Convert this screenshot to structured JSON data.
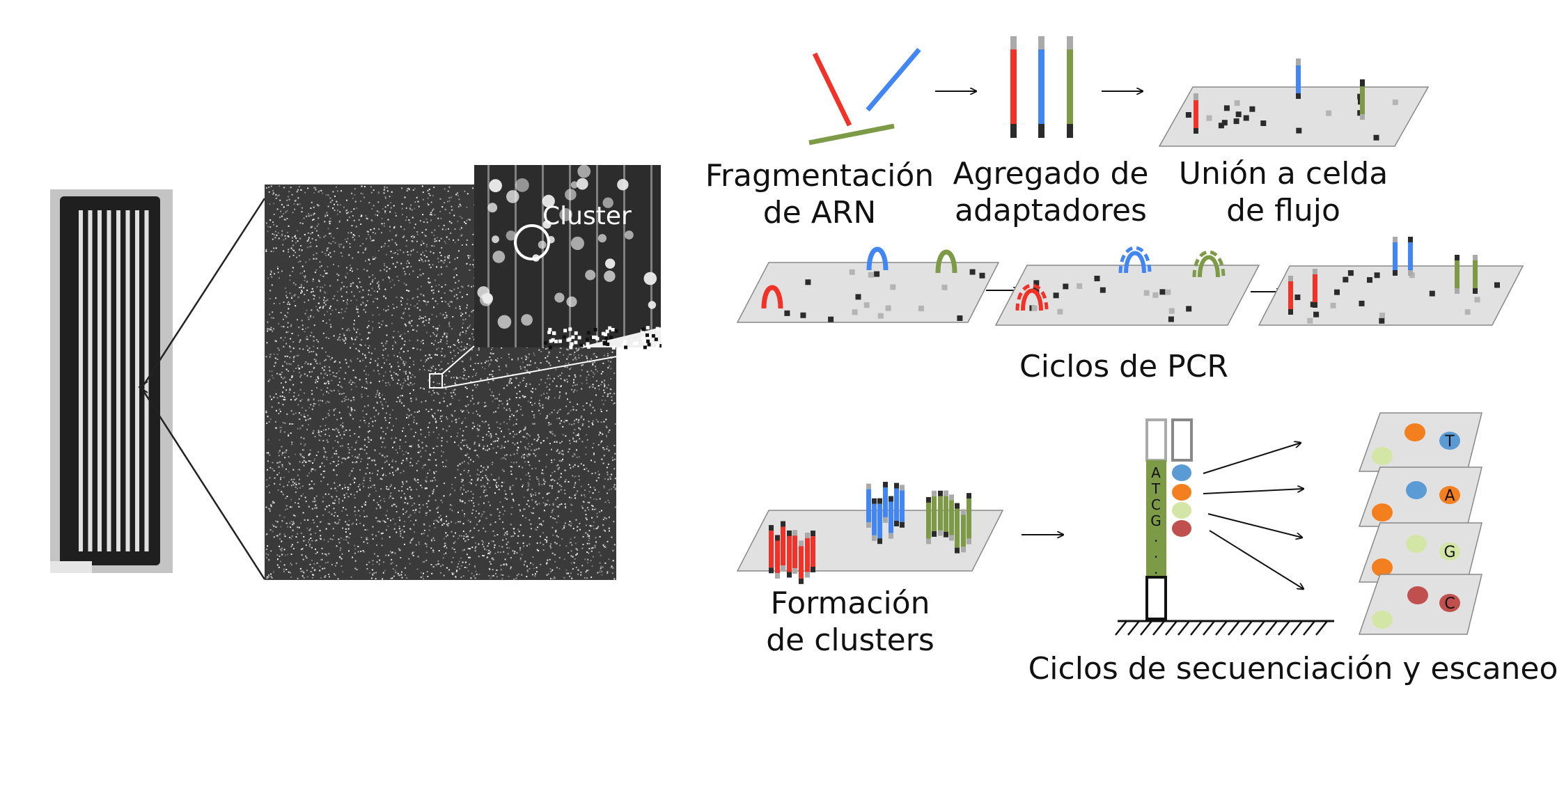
{
  "colors": {
    "red": "#f03228",
    "blue": "#4285f4",
    "green": "#7d9a46",
    "plate": "#e1e1e1",
    "adapter_gray": "#aaaaaa",
    "adapter_dark": "#2b2b2b",
    "dye_T": "#5b9bd5",
    "dye_A": "#f47f1f",
    "dye_G": "#d4e6a5",
    "dye_C": "#c0504d"
  },
  "inset": {
    "cluster_label": "Cluster"
  },
  "steps": {
    "fragmentation": {
      "line1": "Fragmentación",
      "line2": "de ARN"
    },
    "adapters": {
      "line1": "Agregado de",
      "line2": "adaptadores"
    },
    "flowcell": {
      "line1": "Unión a celda",
      "line2": "de flujo"
    },
    "pcr": {
      "label": "Ciclos de PCR"
    },
    "clusters": {
      "line1": "Formación",
      "line2": "de clusters"
    },
    "sequencing": {
      "label": "Ciclos de secuenciación y escaneo"
    }
  },
  "strand_bases": [
    "A",
    "T",
    "C",
    "G",
    ".",
    ".",
    "."
  ],
  "chip_bases": [
    {
      "letter": "T",
      "icon": "dye-T-icon"
    },
    {
      "letter": "A",
      "icon": "dye-A-icon"
    },
    {
      "letter": "G",
      "icon": "dye-G-icon"
    },
    {
      "letter": "C",
      "icon": "dye-C-icon"
    }
  ]
}
